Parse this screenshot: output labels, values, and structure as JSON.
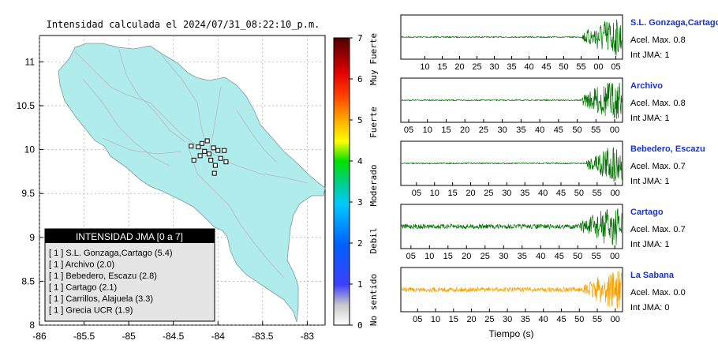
{
  "map": {
    "title": "Intensidad calculada el 2024/07/31_08:22:10_p.m.",
    "x_ticks": [
      "-86",
      "-85.5",
      "-85",
      "-84.5",
      "-84",
      "-83.5",
      "-83"
    ],
    "y_ticks": [
      "11",
      "10.5",
      "10",
      "9.5",
      "9",
      "8.5",
      "8"
    ],
    "xlim": [
      -86,
      -82.8
    ],
    "ylim": [
      8,
      11.3
    ],
    "land_color": "#b0ecec",
    "stations": [
      {
        "lon": -84.18,
        "lat": 10.07
      },
      {
        "lon": -84.12,
        "lat": 10.1
      },
      {
        "lon": -84.05,
        "lat": 10.02
      },
      {
        "lon": -84.0,
        "lat": 9.99
      },
      {
        "lon": -83.93,
        "lat": 9.99
      },
      {
        "lon": -84.2,
        "lat": 9.93
      },
      {
        "lon": -84.27,
        "lat": 9.88
      },
      {
        "lon": -84.08,
        "lat": 9.88
      },
      {
        "lon": -83.97,
        "lat": 9.9
      },
      {
        "lon": -83.91,
        "lat": 9.86
      },
      {
        "lon": -84.03,
        "lat": 9.82
      },
      {
        "lon": -84.15,
        "lat": 9.98
      },
      {
        "lon": -84.22,
        "lat": 10.03
      },
      {
        "lon": -84.1,
        "lat": 9.95
      },
      {
        "lon": -84.3,
        "lat": 10.04
      },
      {
        "lon": -84.04,
        "lat": 9.73
      }
    ]
  },
  "legend": {
    "title": "INTENSIDAD JMA [0 a 7]",
    "items": [
      "[ 1 ]  S.L. Gonzaga,Cartago (5.4)",
      "[ 1 ]  Archivo (2.0)",
      "[ 1 ]  Bebedero, Escazu (2.8)",
      "[ 1 ]  Cartago (2.1)",
      "[ 1 ]  Carrillos, Alajuela (3.3)",
      "[ 1 ]  Grecia UCR (1.9)"
    ]
  },
  "colorbar": {
    "ticks": [
      "7",
      "6",
      "5",
      "4",
      "3",
      "2",
      "1",
      "0"
    ],
    "labels": [
      "Muy Fuerte",
      "Fuerte",
      "Moderado",
      "Debil",
      "No sentido"
    ],
    "range": [
      0,
      7
    ]
  },
  "chart_data": {
    "type": "line",
    "xlabel": "Tiempo (s)",
    "traces": [
      {
        "name": "S.L. Gonzaga,Cartago",
        "acel": "Acel. Max. 0.8",
        "int": "Int JMA: 1",
        "color": "#007000",
        "onset": 0.82,
        "ticks": [
          "10",
          "15",
          "20",
          "25",
          "30",
          "35",
          "40",
          "45",
          "50",
          "55",
          "00",
          "05"
        ],
        "tick_start": 0.073
      },
      {
        "name": "Archivo",
        "acel": "Acel. Max. 0.8",
        "int": "Int JMA: 1",
        "color": "#007000",
        "onset": 0.82,
        "ticks": [
          "05",
          "10",
          "15",
          "20",
          "25",
          "30",
          "35",
          "40",
          "45",
          "50",
          "55",
          "00"
        ],
        "tick_start": 0.0
      },
      {
        "name": "Bebedero, Escazu",
        "acel": "Acel. Max. 0.7",
        "int": "Int JMA: 1",
        "color": "#007000",
        "onset": 0.84,
        "ticks": [
          "05",
          "10",
          "15",
          "20",
          "25",
          "30",
          "35",
          "40",
          "45",
          "50",
          "55",
          "00"
        ],
        "tick_start": 0.035
      },
      {
        "name": "Cartago",
        "acel": "Acel. Max. 0.7",
        "int": "Int JMA: 1",
        "color": "#007000",
        "onset": 0.81,
        "ticks": [
          "05",
          "10",
          "15",
          "20",
          "25",
          "30",
          "35",
          "40",
          "45",
          "50",
          "55",
          "00"
        ],
        "tick_start": 0.01
      },
      {
        "name": "La Sabana",
        "acel": "Acel. Max. 0.0",
        "int": "Int JMA: 0",
        "color": "#f5a000",
        "onset": 0.83,
        "ticks": [
          "05",
          "10",
          "15",
          "20",
          "25",
          "30",
          "35",
          "40",
          "45",
          "50",
          "55",
          "00"
        ],
        "tick_start": 0.04
      }
    ]
  }
}
